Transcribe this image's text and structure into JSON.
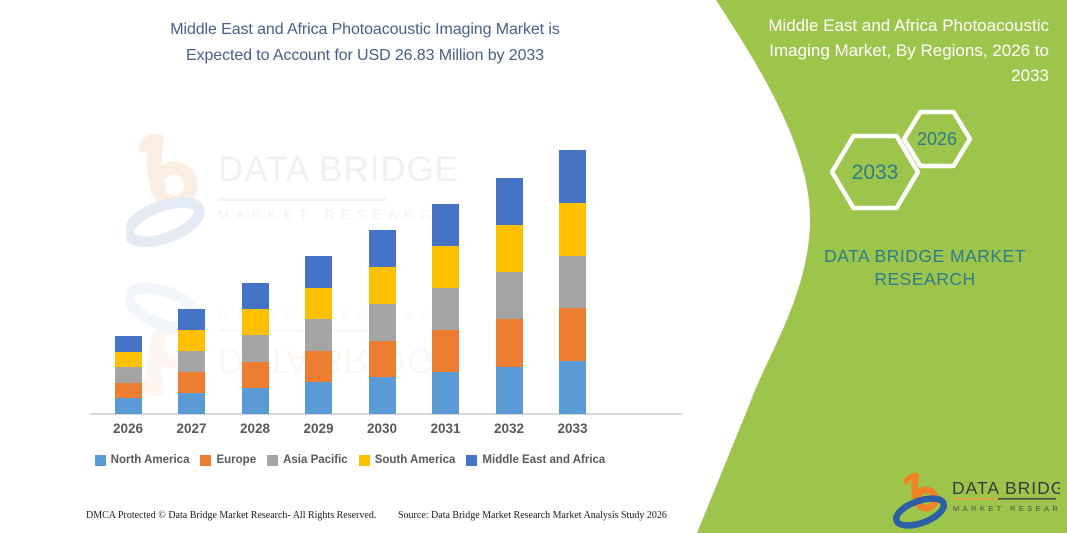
{
  "header": {
    "title_lines": [
      "Middle East and Africa Photoacoustic Imaging Market is",
      "Expected to Account for USD 26.83 Million by 2033"
    ]
  },
  "panel": {
    "title_lines": [
      "Middle East and Africa Photoacoustic",
      "Imaging Market, By Regions, 2026 to",
      "2033"
    ],
    "hexagons": [
      {
        "label": "2033"
      },
      {
        "label": "2026"
      }
    ],
    "brand_lines": [
      "DATA BRIDGE MARKET",
      "RESEARCH"
    ],
    "colors": {
      "background": "#9EC54B",
      "title_text": "#FFFFFF",
      "accent_teal": "#2F7D8C",
      "hex_outline": "#FFFFFF"
    }
  },
  "watermark": {
    "brand": "DATA BRIDGE",
    "sub": "MARKET RESEARCH"
  },
  "logo": {
    "brand": "DATA BRIDGE",
    "sub": "MARKET RESEARCH"
  },
  "footer": {
    "left": "DMCA Protected © Data Bridge Market Research-  All Rights Reserved.",
    "right": "Source: Data Bridge Market Research  Market Analysis Study 2026"
  },
  "colors": {
    "chart_title_text": "#466087",
    "axis_label": "#595959",
    "baseline": "#D9D9D9",
    "footer_text": "#1B1B1B",
    "logo_orange": "#F08326",
    "logo_blue": "#2D5FA6"
  },
  "chart_data": {
    "type": "bar",
    "stacked": true,
    "title": "Middle East and Africa Photoacoustic Imaging Market is Expected to Account for USD 26.83 Million by 2033",
    "unit": "USD Million",
    "categories": [
      "2026",
      "2027",
      "2028",
      "2029",
      "2030",
      "2031",
      "2032",
      "2033"
    ],
    "series": [
      {
        "name": "North America",
        "color": "#5B9BD5",
        "values": [
          1.59,
          2.13,
          2.67,
          3.21,
          3.74,
          4.27,
          4.81,
          5.37
        ]
      },
      {
        "name": "Europe",
        "color": "#ED7D31",
        "values": [
          1.59,
          2.13,
          2.67,
          3.21,
          3.74,
          4.27,
          4.81,
          5.37
        ]
      },
      {
        "name": "Asia Pacific",
        "color": "#A5A5A5",
        "values": [
          1.59,
          2.13,
          2.67,
          3.21,
          3.74,
          4.27,
          4.81,
          5.37
        ]
      },
      {
        "name": "South America",
        "color": "#FFC000",
        "values": [
          1.59,
          2.13,
          2.67,
          3.21,
          3.74,
          4.27,
          4.81,
          5.37
        ]
      },
      {
        "name": "Middle East and Africa",
        "color": "#4472C4",
        "values": [
          1.59,
          2.13,
          2.67,
          3.21,
          3.74,
          4.27,
          4.81,
          5.37
        ]
      }
    ],
    "totals": [
      7.95,
      10.65,
      13.35,
      16.05,
      18.7,
      21.35,
      24.05,
      26.83
    ],
    "xlabel": "",
    "ylabel": "",
    "ylim": [
      0,
      27
    ],
    "grid": false,
    "y_axis_labels_visible": false,
    "legend_position": "bottom"
  }
}
